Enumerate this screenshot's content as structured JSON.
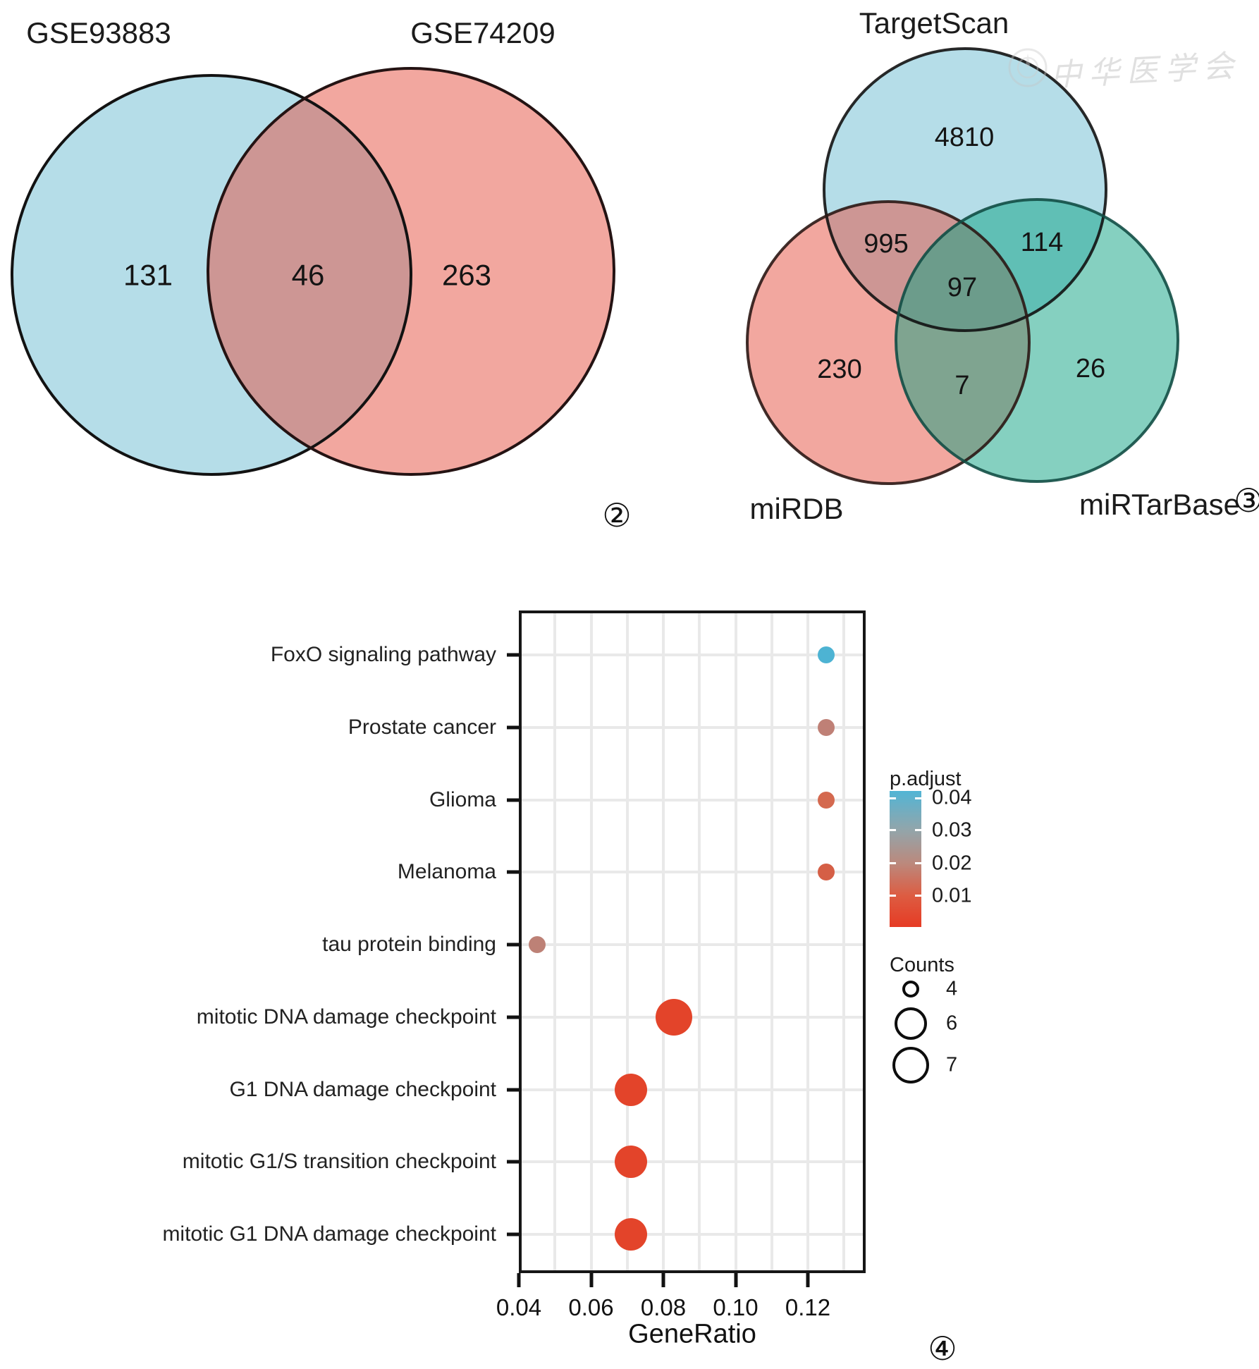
{
  "watermark": {
    "icon": "seal-icon",
    "text": "中华医学会"
  },
  "panel_markers": {
    "venn_pair": "②",
    "venn_triple": "③",
    "dot_plot": "④"
  },
  "chart_data": [
    {
      "type": "venn",
      "subtype": "2-set",
      "sets": [
        {
          "name": "GSE93883",
          "fill": "#6bbbd1",
          "region_fill_on_white": "#b5dde8"
        },
        {
          "name": "GSE74209",
          "fill": "#e54f3f",
          "region_fill_on_white": "#f2a79f"
        }
      ],
      "fill_opacity": 0.5,
      "counts": {
        "GSE93883_only": "131",
        "intersection": "46",
        "GSE74209_only": "263"
      }
    },
    {
      "type": "venn",
      "subtype": "3-set",
      "sets": [
        {
          "name": "TargetScan",
          "fill": "#6bbbd1",
          "region_fill_on_white": "#b9e2ec"
        },
        {
          "name": "miRDB",
          "fill": "#e54f3f",
          "region_fill_on_white": "#f2a59d"
        },
        {
          "name": "miRTarBase",
          "fill": "#0ba181",
          "region_fill_on_white": "#85d0c0"
        }
      ],
      "fill_opacity": 0.5,
      "counts": {
        "TargetScan_only": "4810",
        "TargetScan_miRDB": "995",
        "TargetScan_miRTarBase": "114",
        "all_three": "97",
        "miRDB_only": "230",
        "miRDB_miRTarBase": "7",
        "miRTarBase_only": "26"
      }
    },
    {
      "type": "scatter",
      "subtype": "enrichment-dotplot",
      "xlabel": "GeneRatio",
      "xlim": [
        0.04,
        0.136
      ],
      "xticks": [
        0.04,
        0.06,
        0.08,
        0.1,
        0.12
      ],
      "grid": true,
      "points": [
        {
          "term": "FoxO signaling pathway",
          "gene_ratio": 0.125,
          "p_adjust": 0.04,
          "count": 4,
          "color": "#4db3d3"
        },
        {
          "term": "Prostate cancer",
          "gene_ratio": 0.125,
          "p_adjust": 0.025,
          "count": 4,
          "color": "#bf8076"
        },
        {
          "term": "Glioma",
          "gene_ratio": 0.125,
          "p_adjust": 0.015,
          "count": 4,
          "color": "#d4694f"
        },
        {
          "term": "Melanoma",
          "gene_ratio": 0.125,
          "p_adjust": 0.013,
          "count": 4,
          "color": "#d55f46"
        },
        {
          "term": "tau protein binding",
          "gene_ratio": 0.045,
          "p_adjust": 0.025,
          "count": 4,
          "color": "#bd8176"
        },
        {
          "term": "mitotic DNA damage checkpoint",
          "gene_ratio": 0.083,
          "p_adjust": 0.002,
          "count": 7,
          "color": "#e3442a"
        },
        {
          "term": "G1 DNA damage checkpoint",
          "gene_ratio": 0.071,
          "p_adjust": 0.002,
          "count": 6,
          "color": "#e3442a"
        },
        {
          "term": "mitotic G1/S transition checkpoint",
          "gene_ratio": 0.071,
          "p_adjust": 0.002,
          "count": 6,
          "color": "#e3442a"
        },
        {
          "term": "mitotic G1 DNA damage checkpoint",
          "gene_ratio": 0.071,
          "p_adjust": 0.002,
          "count": 6,
          "color": "#e3442a"
        }
      ],
      "legend": {
        "color": {
          "title": "p.adjust",
          "ticks": [
            "0.04",
            "0.03",
            "0.02",
            "0.01"
          ],
          "gradient": [
            {
              "color": "#52b5d5",
              "stop": 0
            },
            {
              "color": "#93a5aa",
              "stop": 29
            },
            {
              "color": "#bb897d",
              "stop": 53
            },
            {
              "color": "#dd5c42",
              "stop": 77
            },
            {
              "color": "#e63b24",
              "stop": 100
            }
          ]
        },
        "size": {
          "title": "Counts",
          "entries": [
            {
              "label": "4",
              "diameter": 24
            },
            {
              "label": "6",
              "diameter": 46
            },
            {
              "label": "7",
              "diameter": 52
            }
          ]
        }
      }
    }
  ]
}
